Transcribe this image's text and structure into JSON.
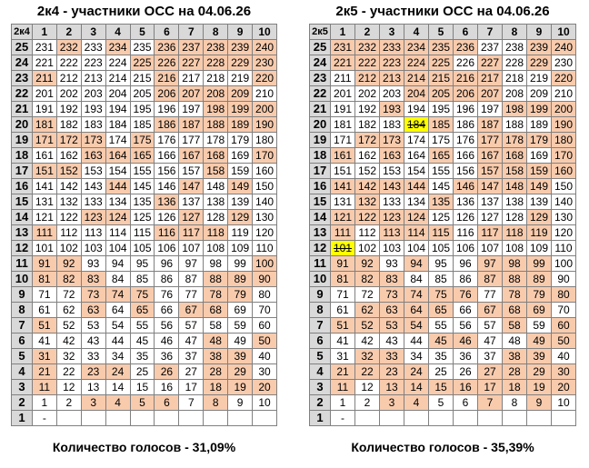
{
  "panels": [
    {
      "title": "2к4 - участники ОСС на 04.06.26",
      "corner": "2к4",
      "columns": [
        "1",
        "2",
        "3",
        "4",
        "5",
        "6",
        "7",
        "8",
        "9",
        "10"
      ],
      "rows": [
        {
          "label": "25",
          "cells": [
            "231",
            "232",
            "233",
            "234",
            "235",
            "236",
            "237",
            "238",
            "239",
            "240"
          ],
          "hl": [
            1,
            3,
            5,
            6,
            7,
            8,
            9
          ],
          "sel": []
        },
        {
          "label": "24",
          "cells": [
            "221",
            "222",
            "223",
            "224",
            "225",
            "226",
            "227",
            "228",
            "229",
            "230"
          ],
          "hl": [
            4,
            5,
            6,
            7,
            8,
            9
          ],
          "sel": []
        },
        {
          "label": "23",
          "cells": [
            "211",
            "212",
            "213",
            "214",
            "215",
            "216",
            "217",
            "218",
            "219",
            "220"
          ],
          "hl": [
            0,
            5,
            9
          ],
          "sel": []
        },
        {
          "label": "22",
          "cells": [
            "201",
            "202",
            "203",
            "204",
            "205",
            "206",
            "207",
            "208",
            "209",
            "210"
          ],
          "hl": [
            5,
            6,
            7,
            8
          ],
          "sel": []
        },
        {
          "label": "21",
          "cells": [
            "191",
            "192",
            "193",
            "194",
            "195",
            "196",
            "197",
            "198",
            "199",
            "200"
          ],
          "hl": [
            7,
            8,
            9
          ],
          "sel": []
        },
        {
          "label": "20",
          "cells": [
            "181",
            "182",
            "183",
            "184",
            "185",
            "186",
            "187",
            "188",
            "189",
            "190"
          ],
          "hl": [
            0,
            5,
            6,
            7,
            8,
            9
          ],
          "sel": []
        },
        {
          "label": "19",
          "cells": [
            "171",
            "172",
            "173",
            "174",
            "175",
            "176",
            "177",
            "178",
            "179",
            "180"
          ],
          "hl": [
            0,
            1,
            2,
            4
          ],
          "sel": []
        },
        {
          "label": "18",
          "cells": [
            "161",
            "162",
            "163",
            "164",
            "165",
            "166",
            "167",
            "168",
            "169",
            "170"
          ],
          "hl": [
            2,
            3,
            4,
            6,
            7,
            9
          ],
          "sel": []
        },
        {
          "label": "17",
          "cells": [
            "151",
            "152",
            "153",
            "154",
            "155",
            "156",
            "157",
            "158",
            "159",
            "160"
          ],
          "hl": [
            0,
            1,
            7
          ],
          "sel": []
        },
        {
          "label": "16",
          "cells": [
            "141",
            "142",
            "143",
            "144",
            "145",
            "146",
            "147",
            "148",
            "149",
            "150"
          ],
          "hl": [
            3,
            6,
            8
          ],
          "sel": []
        },
        {
          "label": "15",
          "cells": [
            "131",
            "132",
            "133",
            "134",
            "135",
            "136",
            "137",
            "138",
            "139",
            "140"
          ],
          "hl": [
            5
          ],
          "sel": []
        },
        {
          "label": "14",
          "cells": [
            "121",
            "122",
            "123",
            "124",
            "125",
            "126",
            "127",
            "128",
            "129",
            "130"
          ],
          "hl": [
            2,
            3,
            6,
            8
          ],
          "sel": []
        },
        {
          "label": "13",
          "cells": [
            "111",
            "112",
            "113",
            "114",
            "115",
            "116",
            "117",
            "118",
            "119",
            "120"
          ],
          "hl": [
            0,
            5,
            6,
            7
          ],
          "sel": []
        },
        {
          "label": "12",
          "cells": [
            "101",
            "102",
            "103",
            "104",
            "105",
            "106",
            "107",
            "108",
            "109",
            "110"
          ],
          "hl": [],
          "sel": []
        },
        {
          "label": "11",
          "cells": [
            "91",
            "92",
            "93",
            "94",
            "95",
            "96",
            "97",
            "98",
            "99",
            "100"
          ],
          "hl": [
            0,
            1,
            9
          ],
          "sel": []
        },
        {
          "label": "10",
          "cells": [
            "81",
            "82",
            "83",
            "84",
            "85",
            "86",
            "87",
            "88",
            "89",
            "90"
          ],
          "hl": [
            0,
            1,
            2,
            7,
            8,
            9
          ],
          "sel": []
        },
        {
          "label": "9",
          "cells": [
            "71",
            "72",
            "73",
            "74",
            "75",
            "76",
            "77",
            "78",
            "79",
            "80"
          ],
          "hl": [
            2,
            3,
            4,
            7,
            8
          ],
          "sel": []
        },
        {
          "label": "8",
          "cells": [
            "61",
            "62",
            "63",
            "64",
            "65",
            "66",
            "67",
            "68",
            "69",
            "70"
          ],
          "hl": [
            2,
            4,
            6,
            7
          ],
          "sel": []
        },
        {
          "label": "7",
          "cells": [
            "51",
            "52",
            "53",
            "54",
            "55",
            "56",
            "57",
            "58",
            "59",
            "60"
          ],
          "hl": [
            0
          ],
          "sel": []
        },
        {
          "label": "6",
          "cells": [
            "41",
            "42",
            "43",
            "44",
            "45",
            "46",
            "47",
            "48",
            "49",
            "50"
          ],
          "hl": [
            7,
            9
          ],
          "sel": []
        },
        {
          "label": "5",
          "cells": [
            "31",
            "32",
            "33",
            "34",
            "35",
            "36",
            "37",
            "38",
            "39",
            "40"
          ],
          "hl": [
            0,
            7,
            8
          ],
          "sel": []
        },
        {
          "label": "4",
          "cells": [
            "21",
            "22",
            "23",
            "24",
            "25",
            "26",
            "27",
            "28",
            "29",
            "30"
          ],
          "hl": [
            0,
            2,
            3,
            5,
            7,
            8
          ],
          "sel": []
        },
        {
          "label": "3",
          "cells": [
            "11",
            "12",
            "13",
            "14",
            "15",
            "16",
            "17",
            "18",
            "19",
            "20"
          ],
          "hl": [
            0,
            7,
            8,
            9
          ],
          "sel": []
        },
        {
          "label": "2",
          "cells": [
            "1",
            "2",
            "3",
            "4",
            "5",
            "6",
            "7",
            "8",
            "9",
            "10"
          ],
          "hl": [
            2,
            3,
            4,
            5,
            7
          ],
          "sel": []
        },
        {
          "label": "1",
          "cells": [
            "-",
            "",
            "",
            "",
            "",
            "",
            "",
            "",
            "",
            ""
          ],
          "hl": [],
          "sel": []
        }
      ],
      "footer": "Количество голосов - 31,09%"
    },
    {
      "title": "2к5 - участники ОСС на 04.06.26",
      "corner": "2к5",
      "columns": [
        "1",
        "2",
        "3",
        "4",
        "5",
        "6",
        "7",
        "8",
        "9",
        "10"
      ],
      "rows": [
        {
          "label": "25",
          "cells": [
            "231",
            "232",
            "233",
            "234",
            "235",
            "236",
            "237",
            "238",
            "239",
            "240"
          ],
          "hl": [
            0,
            1,
            2,
            3,
            4,
            5,
            8,
            9
          ],
          "sel": []
        },
        {
          "label": "24",
          "cells": [
            "221",
            "222",
            "223",
            "224",
            "225",
            "226",
            "227",
            "228",
            "229",
            "230"
          ],
          "hl": [
            0,
            1,
            2,
            3,
            4,
            6,
            8
          ],
          "sel": []
        },
        {
          "label": "23",
          "cells": [
            "211",
            "212",
            "213",
            "214",
            "215",
            "216",
            "217",
            "218",
            "219",
            "220"
          ],
          "hl": [
            1,
            2,
            3,
            4,
            5,
            6,
            9
          ],
          "sel": []
        },
        {
          "label": "22",
          "cells": [
            "201",
            "202",
            "203",
            "204",
            "205",
            "206",
            "207",
            "208",
            "209",
            "210"
          ],
          "hl": [
            3,
            4,
            5,
            6
          ],
          "sel": []
        },
        {
          "label": "21",
          "cells": [
            "191",
            "192",
            "193",
            "194",
            "195",
            "196",
            "197",
            "198",
            "199",
            "200"
          ],
          "hl": [
            2,
            7,
            8,
            9
          ],
          "sel": []
        },
        {
          "label": "20",
          "cells": [
            "181",
            "182",
            "183",
            "184",
            "185",
            "186",
            "187",
            "188",
            "189",
            "190"
          ],
          "hl": [
            4,
            6,
            9
          ],
          "sel": [
            3
          ]
        },
        {
          "label": "19",
          "cells": [
            "171",
            "172",
            "173",
            "174",
            "175",
            "176",
            "177",
            "178",
            "179",
            "180"
          ],
          "hl": [
            1,
            2,
            6,
            7,
            8,
            9
          ],
          "sel": []
        },
        {
          "label": "18",
          "cells": [
            "161",
            "162",
            "163",
            "164",
            "165",
            "166",
            "167",
            "168",
            "169",
            "170"
          ],
          "hl": [
            0,
            2,
            4,
            6,
            7,
            9
          ],
          "sel": []
        },
        {
          "label": "17",
          "cells": [
            "151",
            "152",
            "153",
            "154",
            "155",
            "156",
            "157",
            "158",
            "159",
            "160"
          ],
          "hl": [
            6,
            7,
            8,
            9
          ],
          "sel": []
        },
        {
          "label": "16",
          "cells": [
            "141",
            "142",
            "143",
            "144",
            "145",
            "146",
            "147",
            "148",
            "149",
            "150"
          ],
          "hl": [
            0,
            1,
            2,
            3,
            5,
            6,
            7,
            8
          ],
          "sel": []
        },
        {
          "label": "15",
          "cells": [
            "131",
            "132",
            "133",
            "134",
            "135",
            "136",
            "137",
            "138",
            "139",
            "140"
          ],
          "hl": [
            1,
            4
          ],
          "sel": []
        },
        {
          "label": "14",
          "cells": [
            "121",
            "122",
            "123",
            "124",
            "125",
            "126",
            "127",
            "128",
            "129",
            "130"
          ],
          "hl": [
            0,
            1,
            2,
            3,
            8
          ],
          "sel": []
        },
        {
          "label": "13",
          "cells": [
            "111",
            "112",
            "113",
            "114",
            "115",
            "116",
            "117",
            "118",
            "119",
            "120"
          ],
          "hl": [
            0,
            2,
            3,
            4,
            6,
            7,
            8
          ],
          "sel": []
        },
        {
          "label": "12",
          "cells": [
            "101",
            "102",
            "103",
            "104",
            "105",
            "106",
            "107",
            "108",
            "109",
            "110"
          ],
          "hl": [],
          "sel": [
            0
          ]
        },
        {
          "label": "11",
          "cells": [
            "91",
            "92",
            "93",
            "94",
            "95",
            "96",
            "97",
            "98",
            "99",
            "100"
          ],
          "hl": [
            0,
            1,
            3,
            6,
            7,
            8
          ],
          "sel": []
        },
        {
          "label": "10",
          "cells": [
            "81",
            "82",
            "83",
            "84",
            "85",
            "86",
            "87",
            "88",
            "89",
            "90"
          ],
          "hl": [
            0,
            1,
            2,
            6,
            7,
            8
          ],
          "sel": []
        },
        {
          "label": "9",
          "cells": [
            "71",
            "72",
            "73",
            "74",
            "75",
            "76",
            "77",
            "78",
            "79",
            "80"
          ],
          "hl": [
            2,
            3,
            4,
            5,
            7,
            8,
            9
          ],
          "sel": []
        },
        {
          "label": "8",
          "cells": [
            "61",
            "62",
            "63",
            "64",
            "65",
            "66",
            "67",
            "68",
            "69",
            "70"
          ],
          "hl": [
            1,
            2,
            3,
            4,
            6,
            7,
            8
          ],
          "sel": []
        },
        {
          "label": "7",
          "cells": [
            "51",
            "52",
            "53",
            "54",
            "55",
            "56",
            "57",
            "58",
            "59",
            "60"
          ],
          "hl": [
            0,
            1,
            2,
            3,
            7,
            9
          ],
          "sel": []
        },
        {
          "label": "6",
          "cells": [
            "41",
            "42",
            "43",
            "44",
            "45",
            "46",
            "47",
            "48",
            "49",
            "50"
          ],
          "hl": [
            4,
            5,
            8,
            9
          ],
          "sel": []
        },
        {
          "label": "5",
          "cells": [
            "31",
            "32",
            "33",
            "34",
            "35",
            "36",
            "37",
            "38",
            "39",
            "40"
          ],
          "hl": [
            1,
            2,
            7,
            8
          ],
          "sel": []
        },
        {
          "label": "4",
          "cells": [
            "21",
            "22",
            "23",
            "24",
            "25",
            "26",
            "27",
            "28",
            "29",
            "30"
          ],
          "hl": [
            0,
            1,
            2,
            3,
            6,
            7,
            8,
            9
          ],
          "sel": []
        },
        {
          "label": "3",
          "cells": [
            "11",
            "12",
            "13",
            "14",
            "15",
            "16",
            "17",
            "18",
            "19",
            "20"
          ],
          "hl": [
            0,
            2,
            3,
            4,
            5,
            6,
            7,
            8,
            9
          ],
          "sel": []
        },
        {
          "label": "2",
          "cells": [
            "1",
            "2",
            "3",
            "4",
            "5",
            "6",
            "7",
            "8",
            "9",
            "10"
          ],
          "hl": [
            2,
            3,
            6,
            8
          ],
          "sel": []
        },
        {
          "label": "1",
          "cells": [
            "-",
            "",
            "",
            "",
            "",
            "",
            "",
            "",
            "",
            ""
          ],
          "hl": [],
          "sel": []
        }
      ],
      "footer": "Количество голосов - 35,39%"
    }
  ]
}
